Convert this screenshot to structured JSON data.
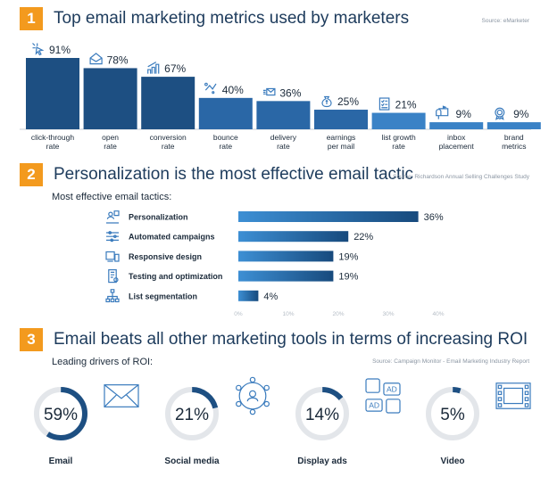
{
  "sections": [
    {
      "number": "1",
      "title": "Top email marketing metrics used by marketers",
      "source": "Source: eMarketer"
    },
    {
      "number": "2",
      "title": "Personalization is the most effective email tactic",
      "source": "Source: Richardson Annual Selling Challenges Study",
      "subtitle": "Most effective email tactics:"
    },
    {
      "number": "3",
      "title": "Email beats all other marketing tools in terms of increasing ROI",
      "source": "Source: Campaign Monitor - Email Marketing Industry Report",
      "subtitle": "Leading drivers of ROI:"
    }
  ],
  "colors": {
    "accent_orange": "#f39a1e",
    "bar_dark": "#1d4f82",
    "bar_light": "#3a86cc",
    "ring_track": "#e3e6ea",
    "ring_fill": "#1d4f82"
  },
  "chart_data": [
    {
      "type": "bar",
      "title": "Top email marketing metrics used by marketers",
      "categories": [
        [
          "click-through",
          "rate"
        ],
        [
          "open",
          "rate"
        ],
        [
          "conversion",
          "rate"
        ],
        [
          "bounce",
          "rate"
        ],
        [
          "delivery",
          "rate"
        ],
        [
          "earnings",
          "per mail"
        ],
        [
          "list growth",
          "rate"
        ],
        [
          "inbox",
          "placement"
        ],
        [
          "brand",
          "metrics"
        ]
      ],
      "values": [
        91,
        78,
        67,
        40,
        36,
        25,
        21,
        9,
        9
      ],
      "value_labels": [
        "91%",
        "78%",
        "67%",
        "40%",
        "36%",
        "25%",
        "21%",
        "9%",
        "9%"
      ],
      "icons": [
        "cursor-click-icon",
        "envelope-open-icon",
        "bar-growth-icon",
        "bounce-icon",
        "delivery-envelope-icon",
        "money-bag-icon",
        "checklist-icon",
        "mailbox-icon",
        "badge-icon"
      ],
      "ylim": [
        0,
        100
      ]
    },
    {
      "type": "bar",
      "orientation": "horizontal",
      "title": "Personalization is the most effective email tactic",
      "categories": [
        "Personalization",
        "Automated campaigns",
        "Responsive design",
        "Testing and optimization",
        "List segmentation"
      ],
      "values": [
        36,
        22,
        19,
        19,
        4
      ],
      "value_labels": [
        "36%",
        "22%",
        "19%",
        "19%",
        "4%"
      ],
      "icons": [
        "personalization-icon",
        "sliders-icon",
        "devices-icon",
        "testing-icon",
        "hierarchy-icon"
      ],
      "xlim": [
        0,
        40
      ],
      "ticks": [
        "0%",
        "10%",
        "20%",
        "30%",
        "40%"
      ]
    },
    {
      "type": "pie",
      "style": "ring",
      "title": "Email beats all other marketing tools in terms of increasing ROI",
      "categories": [
        "Email",
        "Social media",
        "Display ads",
        "Video"
      ],
      "values": [
        59,
        21,
        14,
        5
      ],
      "value_labels": [
        "59%",
        "21%",
        "14%",
        "5%"
      ],
      "icons": [
        "envelope-icon",
        "social-network-icon",
        "display-ads-icon",
        "video-film-icon"
      ]
    }
  ]
}
